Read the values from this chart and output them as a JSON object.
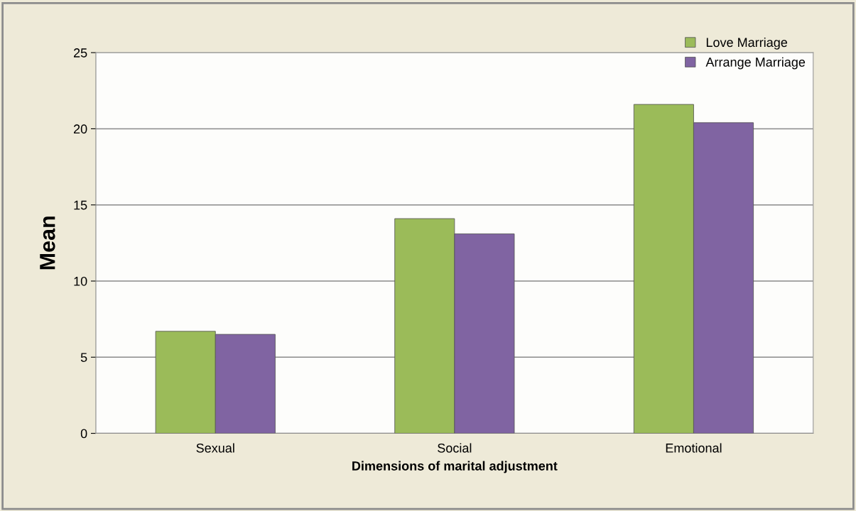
{
  "chart_data": {
    "type": "bar",
    "xlabel": "Dimensions of marital adjustment",
    "ylabel": "Mean",
    "categories": [
      "Sexual",
      "Social",
      "Emotional"
    ],
    "series": [
      {
        "name": "Love Marriage",
        "color": "#9bbb59",
        "values": [
          6.7,
          14.1,
          21.6
        ]
      },
      {
        "name": "Arrange Marriage",
        "color": "#8064a2",
        "values": [
          6.5,
          13.1,
          20.4
        ]
      }
    ],
    "ylim": [
      0,
      25
    ],
    "yticks": [
      0,
      5,
      10,
      15,
      20,
      25
    ],
    "grid": "y",
    "legend": "top right"
  }
}
